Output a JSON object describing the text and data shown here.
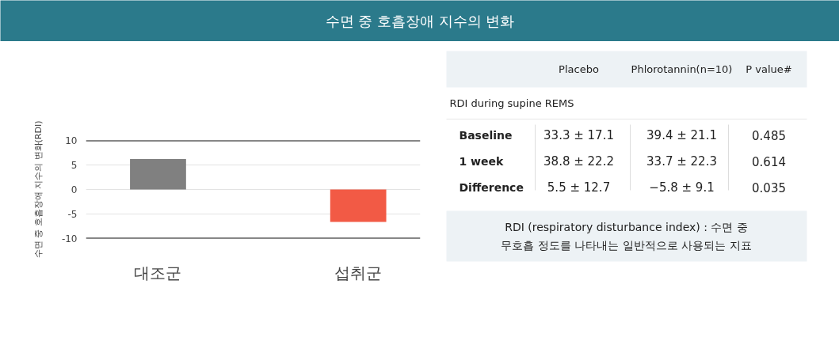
{
  "chart_data": [
    {
      "type": "bar",
      "title": "수면 중 호흡장애 지수의 변화",
      "ylabel": "수면 중 호흡장애 지수의 변화(RDI)",
      "categories": [
        "대조군",
        "섭취군"
      ],
      "values": [
        6.2,
        -6.6
      ],
      "colors": [
        "#808080",
        "#f25a45"
      ],
      "ylim": [
        -10,
        10
      ],
      "yticks": [
        -10,
        -5,
        0,
        5,
        10
      ],
      "grid": "y"
    },
    {
      "type": "other",
      "annotations": [
        "Placebo",
        "Phlorotannin(n=10)",
        "P value#",
        "RDI during supine REMS",
        "Baseline",
        "33.3 ± 17.1",
        "39.4 ± 21.1",
        "0.485",
        "1 week",
        "38.8 ± 22.2",
        "33.7 ± 22.3",
        "0.614",
        "Difference",
        "5.5 ± 12.7",
        "−5.8 ± 9.1",
        "0.035",
        "RDI (respiratory disturbance index) : 수면 중\n무호흡 정도를 나타내는 일반적으로 사용되는 지표"
      ]
    }
  ]
}
